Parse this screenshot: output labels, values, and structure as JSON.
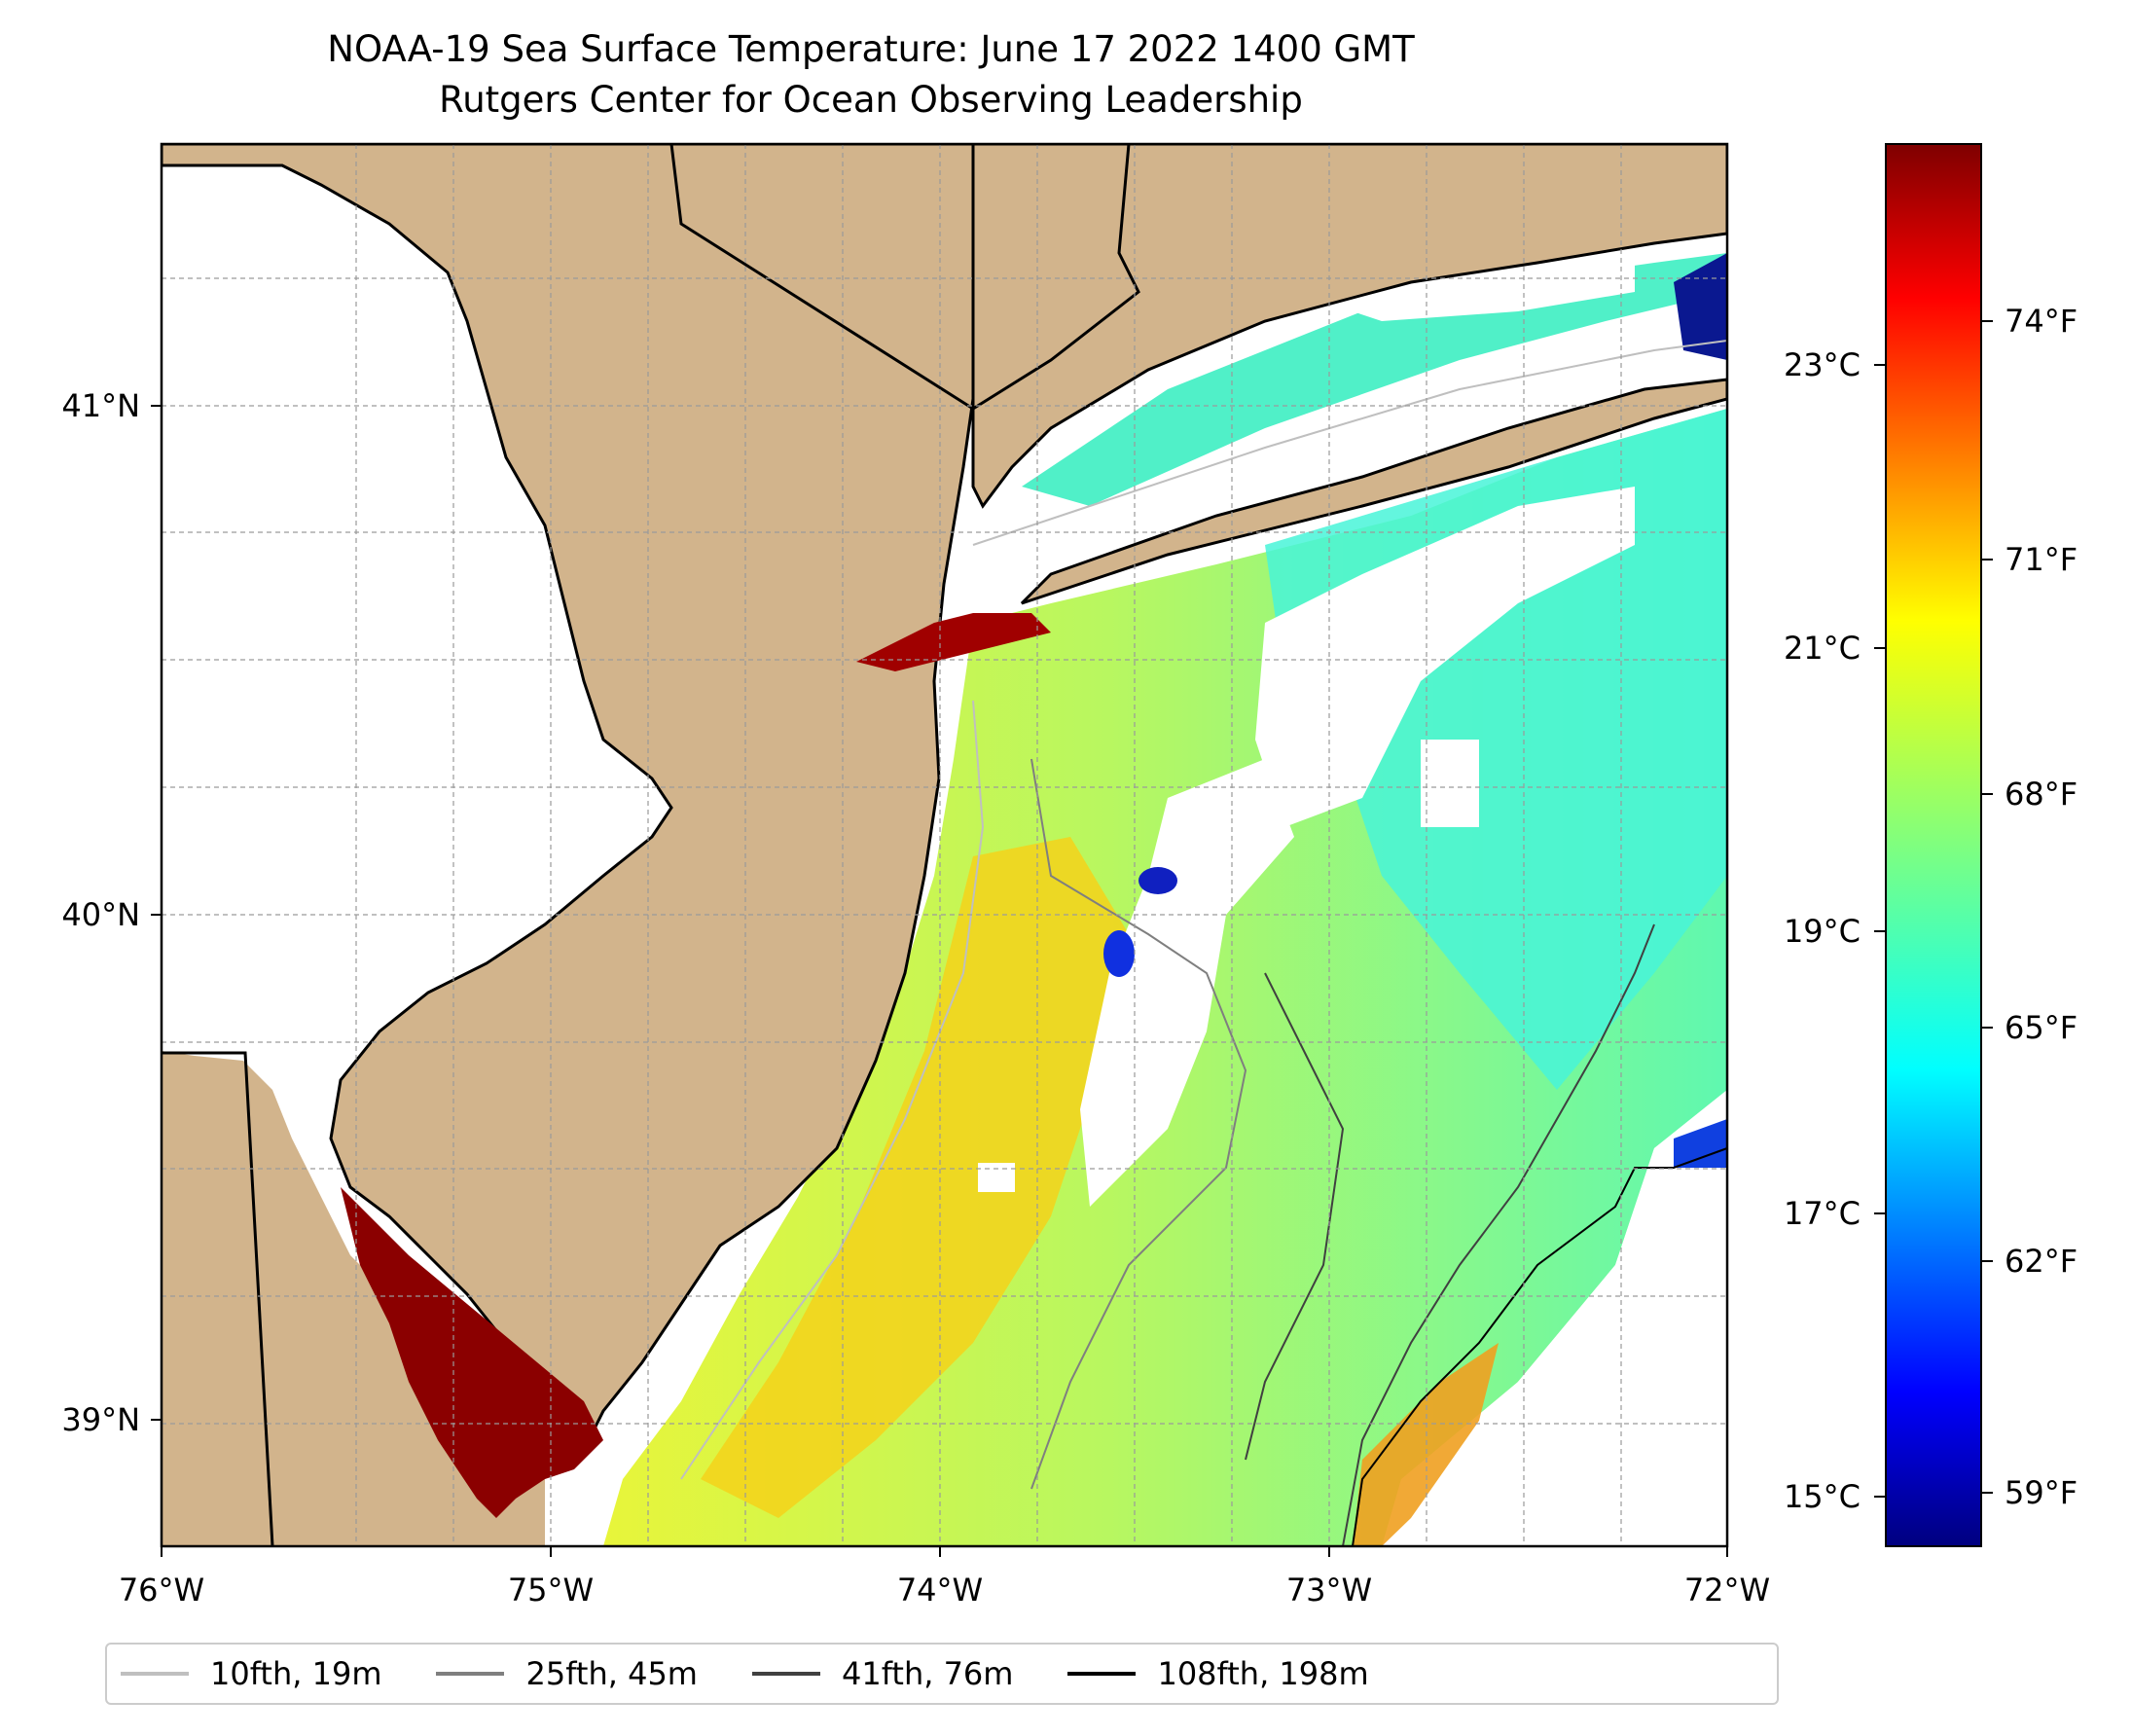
{
  "title": {
    "line1": "NOAA-19 Sea Surface Temperature: June 17 2022 1400 GMT",
    "line2": "Rutgers Center for Ocean Observing Leadership"
  },
  "map": {
    "lon_range": [
      -76,
      -72
    ],
    "lat_range": [
      38.75,
      41.5
    ],
    "x_ticks": [
      "76°W",
      "75°W",
      "74°W",
      "73°W",
      "72°W"
    ],
    "y_ticks": [
      "39°N",
      "40°N",
      "41°N"
    ],
    "land_color": "#d2b48c",
    "grid": "dashed"
  },
  "colorbar": {
    "celsius_ticks": [
      "15°C",
      "17°C",
      "19°C",
      "21°C",
      "23°C"
    ],
    "fahrenheit_ticks": [
      "59°F",
      "62°F",
      "65°F",
      "68°F",
      "71°F",
      "74°F"
    ],
    "colormap": "jet",
    "colors": [
      "#00007f",
      "#0000ff",
      "#007fff",
      "#00ffff",
      "#7fff7f",
      "#ffff00",
      "#ff7f00",
      "#ff0000",
      "#7f0000"
    ]
  },
  "legend": {
    "items": [
      {
        "label": "10fth, 19m",
        "color": "#bfbfbf"
      },
      {
        "label": "25fth, 45m",
        "color": "#7f7f7f"
      },
      {
        "label": "41fth, 76m",
        "color": "#404040"
      },
      {
        "label": "108fth, 198m",
        "color": "#000000"
      }
    ]
  }
}
